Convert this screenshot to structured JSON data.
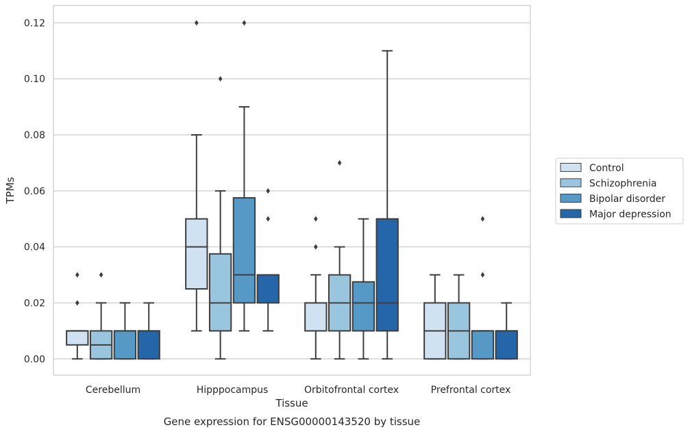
{
  "chart_data": {
    "type": "box",
    "caption": "Gene expression for ENSG00000143520 by tissue",
    "xlabel": "Tissue",
    "ylabel": "TPMs",
    "ylim": [
      -0.0058,
      0.1262
    ],
    "yticks": [
      0.0,
      0.02,
      0.04,
      0.06,
      0.08,
      0.1,
      0.12
    ],
    "ytick_labels": [
      "0.00",
      "0.02",
      "0.04",
      "0.06",
      "0.08",
      "0.10",
      "0.12"
    ],
    "grid": "horizontal",
    "legend_position": "right",
    "categories": [
      "Cerebellum",
      "Hipppocampus",
      "Orbitofrontal cortex",
      "Prefrontal cortex"
    ],
    "series": [
      {
        "name": "Control",
        "color": "#d0e1f2",
        "boxes": [
          {
            "whislo": 0.0,
            "q1": 0.005,
            "med": 0.01,
            "q3": 0.01,
            "whishi": 0.01,
            "fliers": [
              0.02,
              0.03
            ]
          },
          {
            "whislo": 0.01,
            "q1": 0.025,
            "med": 0.04,
            "q3": 0.05,
            "whishi": 0.08,
            "fliers": [
              0.12
            ]
          },
          {
            "whislo": 0.0,
            "q1": 0.01,
            "med": 0.02,
            "q3": 0.02,
            "whishi": 0.03,
            "fliers": [
              0.04,
              0.05
            ]
          },
          {
            "whislo": 0.0,
            "q1": 0.0,
            "med": 0.01,
            "q3": 0.02,
            "whishi": 0.03,
            "fliers": []
          }
        ]
      },
      {
        "name": "Schizophrenia",
        "color": "#9ac5de",
        "boxes": [
          {
            "whislo": 0.0,
            "q1": 0.0,
            "med": 0.005,
            "q3": 0.01,
            "whishi": 0.02,
            "fliers": [
              0.03
            ]
          },
          {
            "whislo": 0.0,
            "q1": 0.01,
            "med": 0.02,
            "q3": 0.0375,
            "whishi": 0.06,
            "fliers": [
              0.1
            ]
          },
          {
            "whislo": 0.0,
            "q1": 0.01,
            "med": 0.02,
            "q3": 0.03,
            "whishi": 0.04,
            "fliers": [
              0.07
            ]
          },
          {
            "whislo": 0.0,
            "q1": 0.0,
            "med": 0.01,
            "q3": 0.02,
            "whishi": 0.03,
            "fliers": []
          }
        ]
      },
      {
        "name": "Bipolar disorder",
        "color": "#5799c6",
        "boxes": [
          {
            "whislo": 0.0,
            "q1": 0.0,
            "med": 0.01,
            "q3": 0.01,
            "whishi": 0.02,
            "fliers": []
          },
          {
            "whislo": 0.01,
            "q1": 0.02,
            "med": 0.03,
            "q3": 0.0575,
            "whishi": 0.09,
            "fliers": [
              0.12
            ]
          },
          {
            "whislo": 0.0,
            "q1": 0.01,
            "med": 0.02,
            "q3": 0.0275,
            "whishi": 0.05,
            "fliers": []
          },
          {
            "whislo": 0.0,
            "q1": 0.0,
            "med": 0.01,
            "q3": 0.01,
            "whishi": 0.01,
            "fliers": [
              0.03,
              0.05
            ]
          }
        ]
      },
      {
        "name": "Major depression",
        "color": "#2565a9",
        "boxes": [
          {
            "whislo": 0.0,
            "q1": 0.0,
            "med": 0.01,
            "q3": 0.01,
            "whishi": 0.02,
            "fliers": []
          },
          {
            "whislo": 0.01,
            "q1": 0.02,
            "med": 0.03,
            "q3": 0.03,
            "whishi": 0.03,
            "fliers": [
              0.05,
              0.06
            ]
          },
          {
            "whislo": 0.0,
            "q1": 0.01,
            "med": 0.02,
            "q3": 0.05,
            "whishi": 0.11,
            "fliers": []
          },
          {
            "whislo": 0.0,
            "q1": 0.0,
            "med": 0.01,
            "q3": 0.01,
            "whishi": 0.02,
            "fliers": []
          }
        ]
      }
    ]
  }
}
